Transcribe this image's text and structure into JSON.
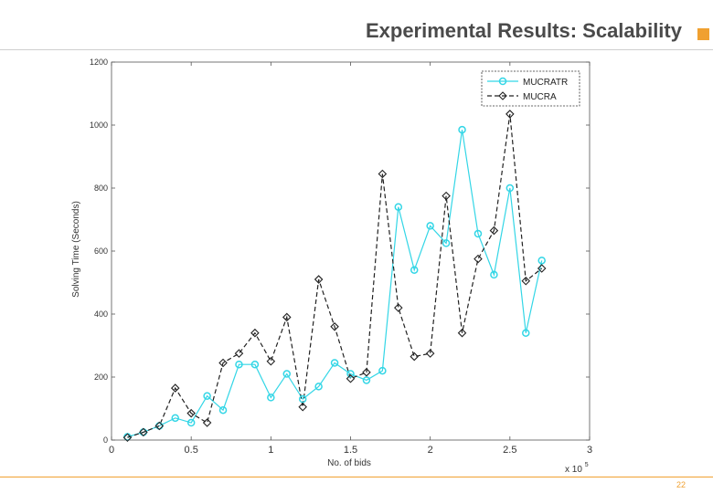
{
  "slide": {
    "title": "Experimental Results: Scalability",
    "page_number": "22",
    "accent_color": "#f0a030"
  },
  "chart_data": {
    "type": "line",
    "title": "",
    "xlabel": "No. of bids",
    "ylabel": "Solving Time (Seconds)",
    "x_multiplier": "x 10",
    "x_multiplier_exponent": "5",
    "xlim": [
      0,
      3
    ],
    "ylim": [
      0,
      1200
    ],
    "xticks": [
      0,
      0.5,
      1,
      1.5,
      2,
      2.5,
      3
    ],
    "xtick_labels": [
      "0",
      "0.5",
      "1",
      "1.5",
      "2",
      "2.5",
      "3"
    ],
    "yticks": [
      0,
      200,
      400,
      600,
      800,
      1000,
      1200
    ],
    "ytick_labels": [
      "0",
      "200",
      "400",
      "600",
      "800",
      "1000",
      "1200"
    ],
    "grid": false,
    "legend_position": "top-right",
    "x": [
      0.1,
      0.2,
      0.3,
      0.4,
      0.5,
      0.6,
      0.7,
      0.8,
      0.9,
      1.0,
      1.1,
      1.2,
      1.3,
      1.4,
      1.5,
      1.6,
      1.7,
      1.8,
      1.9,
      2.0,
      2.1,
      2.2,
      2.3,
      2.4,
      2.5,
      2.6,
      2.7
    ],
    "series": [
      {
        "name": "MUCRATR",
        "color": "#33d6e6",
        "marker": "circle",
        "line_style": "solid",
        "values": [
          10,
          25,
          45,
          70,
          55,
          140,
          95,
          240,
          240,
          135,
          210,
          130,
          170,
          245,
          210,
          190,
          220,
          740,
          540,
          680,
          625,
          985,
          655,
          525,
          800,
          340,
          570
        ]
      },
      {
        "name": "MUCRA",
        "color": "#222222",
        "marker": "diamond",
        "line_style": "dashed",
        "values": [
          8,
          25,
          45,
          165,
          85,
          55,
          245,
          275,
          340,
          250,
          390,
          105,
          510,
          360,
          195,
          215,
          845,
          420,
          265,
          275,
          775,
          340,
          575,
          665,
          1035,
          505,
          545
        ]
      }
    ]
  }
}
